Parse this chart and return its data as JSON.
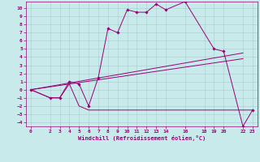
{
  "xlabel": "Windchill (Refroidissement éolien,°C)",
  "bg_color": "#c8eaea",
  "line_color": "#990077",
  "grid_color": "#aacccc",
  "x_ticks": [
    0,
    2,
    3,
    4,
    5,
    6,
    7,
    8,
    9,
    10,
    11,
    12,
    13,
    14,
    16,
    18,
    19,
    20,
    22,
    23
  ],
  "ylim": [
    -4.5,
    10.8
  ],
  "xlim": [
    -0.5,
    23.5
  ],
  "yticks": [
    -4,
    -3,
    -2,
    -1,
    0,
    1,
    2,
    3,
    4,
    5,
    6,
    7,
    8,
    9,
    10
  ],
  "curve1_x": [
    0,
    2,
    3,
    4,
    5,
    6,
    7,
    8,
    9,
    10,
    11,
    12,
    13,
    14,
    16,
    19,
    20,
    22,
    23
  ],
  "curve1_y": [
    0,
    -1,
    -1,
    1,
    0.7,
    -2,
    1.5,
    7.5,
    7.0,
    9.8,
    9.5,
    9.5,
    10.5,
    9.8,
    10.8,
    5.0,
    4.7,
    -4.5,
    -2.5
  ],
  "curve2_x": [
    0,
    2,
    3,
    4,
    5,
    6,
    7,
    8,
    9,
    10,
    11,
    12,
    13,
    14,
    16,
    19,
    20,
    22,
    23
  ],
  "curve2_y": [
    0,
    -1.0,
    -1.0,
    0.7,
    -2,
    -2.5,
    -2.5,
    -2.5,
    -2.5,
    -2.5,
    -2.5,
    -2.5,
    -2.5,
    -2.5,
    -2.5,
    -2.5,
    -2.5,
    -2.5,
    -2.5
  ],
  "curve3_x": [
    0,
    22
  ],
  "curve3_y": [
    0,
    4.5
  ],
  "curve4_x": [
    0,
    22
  ],
  "curve4_y": [
    0,
    3.8
  ]
}
